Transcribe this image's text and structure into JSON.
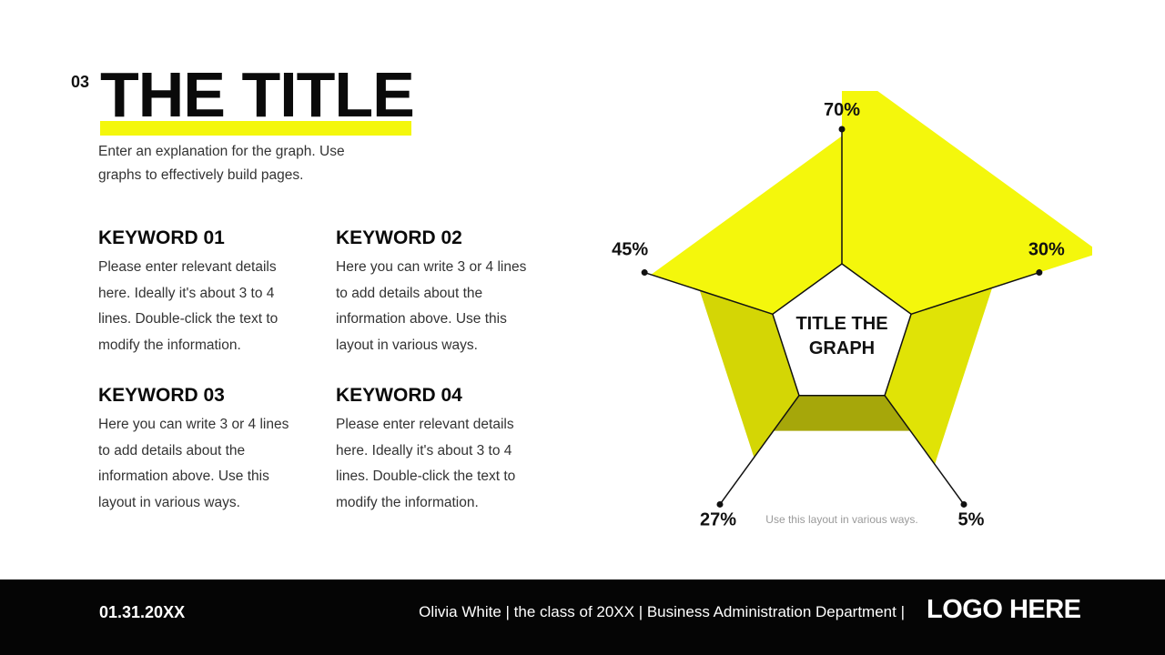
{
  "slide": {
    "number": "03",
    "title": "THE TITLE",
    "description": "Enter an explanation for the graph. Use graphs to effectively build pages."
  },
  "keywords": [
    {
      "title": "KEYWORD 01",
      "body": "Please enter relevant details here. Ideally it's about 3 to 4 lines. Double-click the text to modify the information."
    },
    {
      "title": "KEYWORD 02",
      "body": "Here you can write 3 or 4 lines to add details about the information above. Use this layout in various ways."
    },
    {
      "title": "KEYWORD 03",
      "body": "Here you can write 3 or 4 lines to add details about the information above. Use this layout in various ways."
    },
    {
      "title": "KEYWORD 04",
      "body": "Please enter relevant details here. Ideally it's about 3 to 4 lines. Double-click the text to modify the information."
    }
  ],
  "chart_data": {
    "type": "pentagon-segment",
    "title": "TITLE THE GRAPH",
    "caption": "Use this layout in various ways.",
    "segments": [
      {
        "label": "70%",
        "value": 70,
        "color": "#f4f70c"
      },
      {
        "label": "30%",
        "value": 30,
        "color": "#e0e306"
      },
      {
        "label": "5%",
        "value": 5,
        "color": "#a6a70a"
      },
      {
        "label": "27%",
        "value": 27,
        "color": "#d4d605"
      },
      {
        "label": "45%",
        "value": 45,
        "color": "#f4f70c"
      }
    ]
  },
  "footer": {
    "date": "01.31.20XX",
    "byline": "Olivia White | the class of 20XX | Business Administration Department |",
    "logo": "LOGO HERE"
  },
  "colors": {
    "accent": "#f4f70c",
    "dark": "#050505"
  }
}
